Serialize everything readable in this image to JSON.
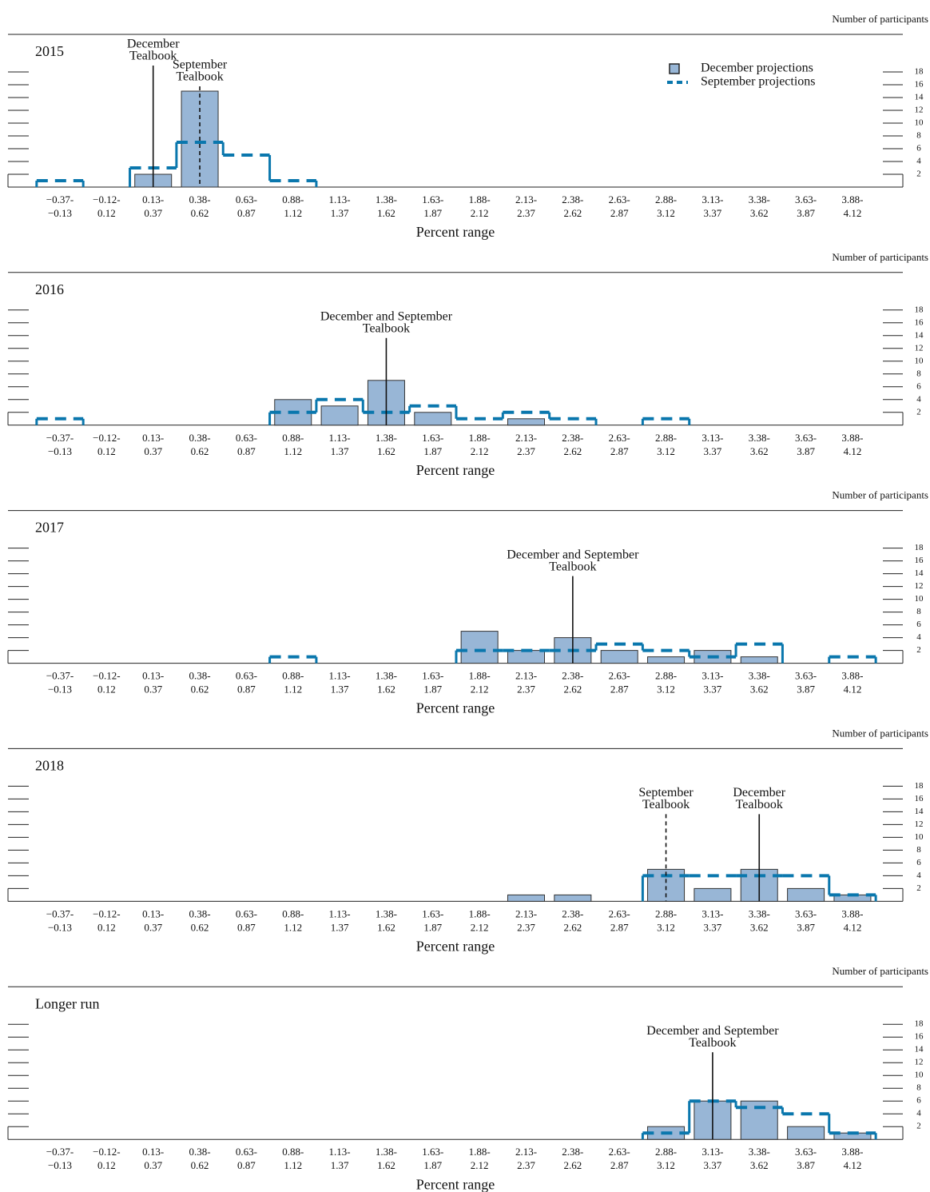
{
  "chart_data": [
    {
      "type": "bar",
      "title": "2015",
      "y_label": "Number of participants",
      "x_label": "Percent range",
      "categories": [
        [
          "−0.37-",
          "−0.13"
        ],
        [
          "−0.12-",
          "0.12"
        ],
        [
          "0.13-",
          "0.37"
        ],
        [
          "0.38-",
          "0.62"
        ],
        [
          "0.63-",
          "0.87"
        ],
        [
          "0.88-",
          "1.12"
        ],
        [
          "1.13-",
          "1.37"
        ],
        [
          "1.38-",
          "1.62"
        ],
        [
          "1.63-",
          "1.87"
        ],
        [
          "1.88-",
          "2.12"
        ],
        [
          "2.13-",
          "2.37"
        ],
        [
          "2.38-",
          "2.62"
        ],
        [
          "2.63-",
          "2.87"
        ],
        [
          "2.88-",
          "3.12"
        ],
        [
          "3.13-",
          "3.37"
        ],
        [
          "3.38-",
          "3.62"
        ],
        [
          "3.63-",
          "3.87"
        ],
        [
          "3.88-",
          "4.12"
        ]
      ],
      "series": [
        {
          "name": "December projections",
          "type": "bar",
          "color": "#98b6d6",
          "values": [
            0,
            0,
            2,
            15,
            0,
            0,
            0,
            0,
            0,
            0,
            0,
            0,
            0,
            0,
            0,
            0,
            0,
            0
          ]
        },
        {
          "name": "September projections",
          "type": "step",
          "color": "#0a77ad",
          "values": [
            1,
            0,
            3,
            7,
            5,
            1,
            0,
            0,
            0,
            0,
            0,
            0,
            0,
            0,
            0,
            0,
            0,
            0
          ]
        }
      ],
      "annotations": [
        {
          "text": [
            "December",
            "Tealbook"
          ],
          "category": 2,
          "style": "solid"
        },
        {
          "text": [
            "September",
            "Tealbook"
          ],
          "category": 3,
          "style": "dashed"
        }
      ],
      "ylim": [
        0,
        20
      ],
      "yticks": [
        2,
        4,
        6,
        8,
        10,
        12,
        14,
        16,
        18
      ],
      "legend": "upper right"
    },
    {
      "type": "bar",
      "title": "2016",
      "y_label": "Number of participants",
      "x_label": "Percent range",
      "categories": [
        [
          "−0.37-",
          "−0.13"
        ],
        [
          "−0.12-",
          "0.12"
        ],
        [
          "0.13-",
          "0.37"
        ],
        [
          "0.38-",
          "0.62"
        ],
        [
          "0.63-",
          "0.87"
        ],
        [
          "0.88-",
          "1.12"
        ],
        [
          "1.13-",
          "1.37"
        ],
        [
          "1.38-",
          "1.62"
        ],
        [
          "1.63-",
          "1.87"
        ],
        [
          "1.88-",
          "2.12"
        ],
        [
          "2.13-",
          "2.37"
        ],
        [
          "2.38-",
          "2.62"
        ],
        [
          "2.63-",
          "2.87"
        ],
        [
          "2.88-",
          "3.12"
        ],
        [
          "3.13-",
          "3.37"
        ],
        [
          "3.38-",
          "3.62"
        ],
        [
          "3.63-",
          "3.87"
        ],
        [
          "3.88-",
          "4.12"
        ]
      ],
      "series": [
        {
          "type": "bar",
          "color": "#98b6d6",
          "values": [
            0,
            0,
            0,
            0,
            0,
            4,
            3,
            7,
            2,
            0,
            1,
            0,
            0,
            0,
            0,
            0,
            0,
            0
          ]
        },
        {
          "type": "step",
          "color": "#0a77ad",
          "values": [
            1,
            0,
            0,
            0,
            0,
            2,
            4,
            2,
            3,
            1,
            2,
            1,
            0,
            1,
            0,
            0,
            0,
            0
          ]
        }
      ],
      "annotations": [
        {
          "text": [
            "December and September",
            "Tealbook"
          ],
          "category": 7,
          "style": "solid"
        }
      ],
      "ylim": [
        0,
        20
      ],
      "yticks": [
        2,
        4,
        6,
        8,
        10,
        12,
        14,
        16,
        18
      ]
    },
    {
      "type": "bar",
      "title": "2017",
      "y_label": "Number of participants",
      "x_label": "Percent range",
      "categories": [
        [
          "−0.37-",
          "−0.13"
        ],
        [
          "−0.12-",
          "0.12"
        ],
        [
          "0.13-",
          "0.37"
        ],
        [
          "0.38-",
          "0.62"
        ],
        [
          "0.63-",
          "0.87"
        ],
        [
          "0.88-",
          "1.12"
        ],
        [
          "1.13-",
          "1.37"
        ],
        [
          "1.38-",
          "1.62"
        ],
        [
          "1.63-",
          "1.87"
        ],
        [
          "1.88-",
          "2.12"
        ],
        [
          "2.13-",
          "2.37"
        ],
        [
          "2.38-",
          "2.62"
        ],
        [
          "2.63-",
          "2.87"
        ],
        [
          "2.88-",
          "3.12"
        ],
        [
          "3.13-",
          "3.37"
        ],
        [
          "3.38-",
          "3.62"
        ],
        [
          "3.63-",
          "3.87"
        ],
        [
          "3.88-",
          "4.12"
        ]
      ],
      "series": [
        {
          "type": "bar",
          "color": "#98b6d6",
          "values": [
            0,
            0,
            0,
            0,
            0,
            0,
            0,
            0,
            0,
            5,
            2,
            4,
            2,
            1,
            2,
            1,
            0,
            0
          ]
        },
        {
          "type": "step",
          "color": "#0a77ad",
          "values": [
            0,
            0,
            0,
            0,
            0,
            1,
            0,
            0,
            0,
            2,
            2,
            2,
            3,
            2,
            1,
            3,
            0,
            1
          ]
        }
      ],
      "annotations": [
        {
          "text": [
            "December and September",
            "Tealbook"
          ],
          "category": 11,
          "style": "solid"
        }
      ],
      "ylim": [
        0,
        20
      ],
      "yticks": [
        2,
        4,
        6,
        8,
        10,
        12,
        14,
        16,
        18
      ]
    },
    {
      "type": "bar",
      "title": "2018",
      "y_label": "Number of participants",
      "x_label": "Percent range",
      "categories": [
        [
          "−0.37-",
          "−0.13"
        ],
        [
          "−0.12-",
          "0.12"
        ],
        [
          "0.13-",
          "0.37"
        ],
        [
          "0.38-",
          "0.62"
        ],
        [
          "0.63-",
          "0.87"
        ],
        [
          "0.88-",
          "1.12"
        ],
        [
          "1.13-",
          "1.37"
        ],
        [
          "1.38-",
          "1.62"
        ],
        [
          "1.63-",
          "1.87"
        ],
        [
          "1.88-",
          "2.12"
        ],
        [
          "2.13-",
          "2.37"
        ],
        [
          "2.38-",
          "2.62"
        ],
        [
          "2.63-",
          "2.87"
        ],
        [
          "2.88-",
          "3.12"
        ],
        [
          "3.13-",
          "3.37"
        ],
        [
          "3.38-",
          "3.62"
        ],
        [
          "3.63-",
          "3.87"
        ],
        [
          "3.88-",
          "4.12"
        ]
      ],
      "series": [
        {
          "type": "bar",
          "color": "#98b6d6",
          "values": [
            0,
            0,
            0,
            0,
            0,
            0,
            0,
            0,
            0,
            0,
            1,
            1,
            0,
            5,
            2,
            5,
            2,
            1
          ]
        },
        {
          "type": "step",
          "color": "#0a77ad",
          "values": [
            0,
            0,
            0,
            0,
            0,
            0,
            0,
            0,
            0,
            0,
            0,
            0,
            0,
            4,
            4,
            4,
            4,
            1
          ]
        }
      ],
      "annotations": [
        {
          "text": [
            "September",
            "Tealbook"
          ],
          "category": 13,
          "style": "dashed"
        },
        {
          "text": [
            "December",
            "Tealbook"
          ],
          "category": 15,
          "style": "solid"
        }
      ],
      "ylim": [
        0,
        20
      ],
      "yticks": [
        2,
        4,
        6,
        8,
        10,
        12,
        14,
        16,
        18
      ]
    },
    {
      "type": "bar",
      "title": "Longer run",
      "y_label": "Number of participants",
      "x_label": "Percent range",
      "categories": [
        [
          "−0.37-",
          "−0.13"
        ],
        [
          "−0.12-",
          "0.12"
        ],
        [
          "0.13-",
          "0.37"
        ],
        [
          "0.38-",
          "0.62"
        ],
        [
          "0.63-",
          "0.87"
        ],
        [
          "0.88-",
          "1.12"
        ],
        [
          "1.13-",
          "1.37"
        ],
        [
          "1.38-",
          "1.62"
        ],
        [
          "1.63-",
          "1.87"
        ],
        [
          "1.88-",
          "2.12"
        ],
        [
          "2.13-",
          "2.37"
        ],
        [
          "2.38-",
          "2.62"
        ],
        [
          "2.63-",
          "2.87"
        ],
        [
          "2.88-",
          "3.12"
        ],
        [
          "3.13-",
          "3.37"
        ],
        [
          "3.38-",
          "3.62"
        ],
        [
          "3.63-",
          "3.87"
        ],
        [
          "3.88-",
          "4.12"
        ]
      ],
      "series": [
        {
          "type": "bar",
          "color": "#98b6d6",
          "values": [
            0,
            0,
            0,
            0,
            0,
            0,
            0,
            0,
            0,
            0,
            0,
            0,
            0,
            2,
            6,
            6,
            2,
            1
          ]
        },
        {
          "type": "step",
          "color": "#0a77ad",
          "values": [
            0,
            0,
            0,
            0,
            0,
            0,
            0,
            0,
            0,
            0,
            0,
            0,
            0,
            1,
            6,
            5,
            4,
            1
          ]
        }
      ],
      "annotations": [
        {
          "text": [
            "December and September",
            "Tealbook"
          ],
          "category": 14,
          "style": "solid"
        }
      ],
      "ylim": [
        0,
        20
      ],
      "yticks": [
        2,
        4,
        6,
        8,
        10,
        12,
        14,
        16,
        18
      ]
    }
  ]
}
